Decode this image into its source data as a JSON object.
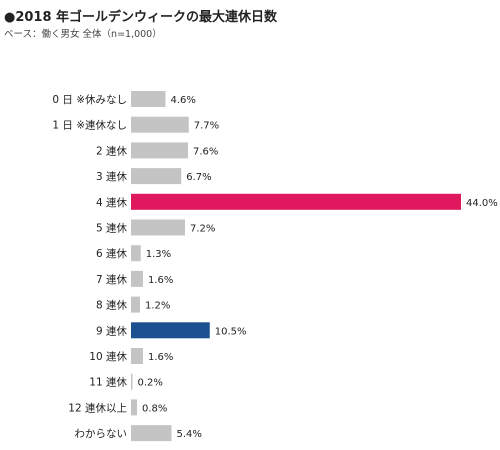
{
  "title": "●2018 年ゴールデンウィークの最大連休日数",
  "subtitle": "ベース：働く男女 全体（n=1,000）",
  "colors": {
    "default": "#c4c4c4",
    "highlight_pink": "#e0195e",
    "highlight_blue": "#1b4f8f"
  },
  "chart_data": {
    "type": "bar",
    "orientation": "horizontal",
    "title": "●2018 年ゴールデンウィークの最大連休日数",
    "subtitle": "ベース：働く男女 全体（n=1,000）",
    "xlabel": "",
    "ylabel": "",
    "unit": "%",
    "xlim": [
      0,
      44.0
    ],
    "grid": false,
    "categories": [
      "0 日 ※休みなし",
      "1 日 ※連休なし",
      "2 連休",
      "3 連休",
      "4 連休",
      "5 連休",
      "6 連休",
      "7 連休",
      "8 連休",
      "9 連休",
      "10 連休",
      "11 連休",
      "12 連休以上",
      "わからない"
    ],
    "values": [
      4.6,
      7.7,
      7.6,
      6.7,
      44.0,
      7.2,
      1.3,
      1.6,
      1.2,
      10.5,
      1.6,
      0.2,
      0.8,
      5.4
    ],
    "value_labels": [
      "4.6%",
      "7.7%",
      "7.6%",
      "6.7%",
      "44.0%",
      "7.2%",
      "1.3%",
      "1.6%",
      "1.2%",
      "10.5%",
      "1.6%",
      "0.2%",
      "0.8%",
      "5.4%"
    ],
    "bar_colors": [
      "#c4c4c4",
      "#c4c4c4",
      "#c4c4c4",
      "#c4c4c4",
      "#e0195e",
      "#c4c4c4",
      "#c4c4c4",
      "#c4c4c4",
      "#c4c4c4",
      "#1b4f8f",
      "#c4c4c4",
      "#c4c4c4",
      "#c4c4c4",
      "#c4c4c4"
    ]
  }
}
